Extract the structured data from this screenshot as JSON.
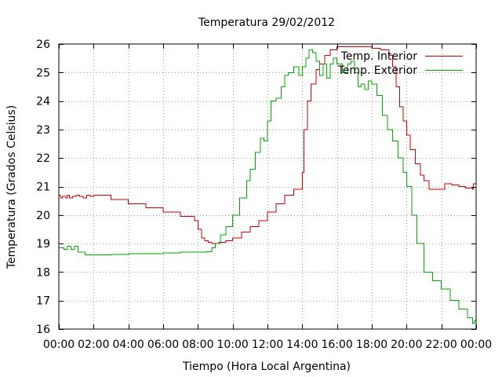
{
  "chart_data": {
    "type": "line",
    "title": "Temperatura 29/02/2012",
    "xlabel": "Tiempo (Hora Local Argentina)",
    "ylabel": "Temperatura (Grados Celsius)",
    "xlim": [
      0,
      24
    ],
    "ylim": [
      16,
      26
    ],
    "x_tick_values": [
      0,
      2,
      4,
      6,
      8,
      10,
      12,
      14,
      16,
      18,
      20,
      22,
      24
    ],
    "x_tick_labels": [
      "00:00",
      "02:00",
      "04:00",
      "06:00",
      "08:00",
      "10:00",
      "12:00",
      "14:00",
      "16:00",
      "18:00",
      "20:00",
      "22:00",
      "00:00"
    ],
    "y_tick_values": [
      16,
      17,
      18,
      19,
      20,
      21,
      22,
      23,
      24,
      25,
      26
    ],
    "y_tick_labels": [
      "16",
      "17",
      "18",
      "19",
      "20",
      "21",
      "22",
      "23",
      "24",
      "25",
      "26"
    ],
    "grid": true,
    "legend_position": "top-right",
    "series": [
      {
        "name": "Temp. Interior",
        "color": "#cc0000",
        "x": [
          0,
          0.1,
          0.2,
          0.4,
          0.5,
          0.6,
          0.8,
          1.0,
          1.2,
          1.4,
          1.6,
          1.8,
          2.0,
          3.0,
          4.0,
          5.0,
          6.0,
          7.0,
          7.8,
          8.0,
          8.2,
          8.4,
          8.6,
          8.8,
          9.2,
          9.6,
          10.0,
          10.5,
          11.0,
          11.5,
          12.0,
          12.5,
          13.0,
          13.5,
          13.8,
          14.0,
          14.1,
          14.3,
          14.5,
          14.8,
          15.0,
          15.3,
          15.6,
          16.0,
          16.3,
          16.6,
          17.0,
          17.5,
          18.0,
          18.5,
          19.0,
          19.2,
          19.4,
          19.6,
          19.8,
          20.0,
          20.2,
          20.5,
          20.8,
          21.0,
          21.3,
          21.6,
          21.9,
          22.2,
          22.6,
          23.0,
          23.4,
          23.8,
          23.85,
          24.0
        ],
        "y": [
          20.7,
          20.6,
          20.65,
          20.6,
          20.7,
          20.6,
          20.65,
          20.7,
          20.65,
          20.6,
          20.7,
          20.65,
          20.7,
          20.55,
          20.4,
          20.25,
          20.1,
          19.95,
          19.8,
          19.5,
          19.2,
          19.1,
          19.05,
          19.0,
          19.05,
          19.1,
          19.2,
          19.4,
          19.6,
          19.8,
          20.1,
          20.4,
          20.7,
          20.9,
          20.9,
          21.5,
          23.0,
          24.0,
          24.6,
          25.1,
          25.3,
          25.6,
          25.8,
          25.9,
          25.9,
          25.9,
          25.9,
          25.9,
          25.85,
          25.8,
          25.6,
          25.2,
          24.5,
          23.8,
          23.3,
          22.8,
          22.3,
          21.8,
          21.4,
          21.2,
          20.9,
          20.9,
          20.9,
          21.1,
          21.05,
          21.0,
          20.95,
          20.9,
          21.1,
          21.1
        ]
      },
      {
        "name": "Temp. Exterior",
        "color": "#00aa00",
        "x": [
          0,
          0.3,
          0.5,
          0.7,
          0.9,
          1.1,
          1.3,
          1.5,
          2.0,
          3.0,
          4.0,
          5.0,
          6.0,
          7.0,
          8.0,
          8.5,
          8.8,
          9.0,
          9.3,
          9.6,
          10.0,
          10.4,
          10.8,
          11.0,
          11.3,
          11.6,
          11.8,
          12.0,
          12.2,
          12.5,
          12.8,
          13.0,
          13.2,
          13.5,
          13.8,
          14.0,
          14.2,
          14.4,
          14.6,
          14.8,
          15.0,
          15.2,
          15.4,
          15.6,
          15.8,
          16.0,
          16.3,
          16.6,
          16.8,
          17.0,
          17.2,
          17.4,
          17.6,
          17.8,
          18.0,
          18.3,
          18.6,
          18.9,
          19.2,
          19.5,
          19.8,
          20.0,
          20.3,
          20.6,
          21.0,
          21.5,
          22.0,
          22.5,
          23.0,
          23.5,
          23.8,
          23.9,
          24.0
        ],
        "y": [
          18.85,
          18.8,
          18.9,
          18.8,
          18.9,
          18.7,
          18.7,
          18.6,
          18.6,
          18.62,
          18.65,
          18.65,
          18.67,
          18.7,
          18.7,
          18.72,
          18.85,
          19.0,
          19.3,
          19.6,
          20.0,
          20.6,
          21.2,
          21.6,
          22.2,
          22.7,
          22.6,
          23.3,
          24.0,
          24.1,
          24.5,
          24.9,
          25.0,
          25.2,
          24.9,
          25.2,
          25.5,
          25.8,
          25.7,
          25.4,
          24.9,
          25.3,
          24.8,
          25.3,
          25.5,
          25.3,
          25.0,
          25.3,
          25.4,
          25.0,
          24.5,
          24.6,
          24.4,
          24.7,
          24.6,
          24.2,
          23.5,
          23.0,
          22.6,
          22.0,
          21.5,
          21.0,
          20.0,
          19.0,
          18.0,
          17.7,
          17.4,
          17.0,
          16.7,
          16.4,
          16.2,
          16.3,
          16.3
        ]
      }
    ]
  }
}
